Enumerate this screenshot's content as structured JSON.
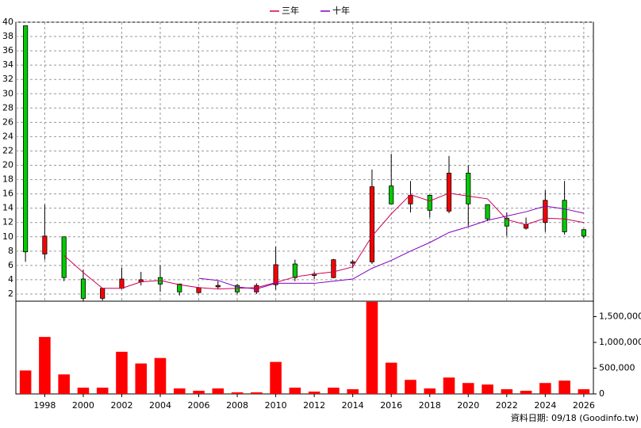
{
  "chart_data": [
    {
      "type": "candlestick",
      "x": [
        1997,
        1998,
        1999,
        2000,
        2001,
        2002,
        2003,
        2004,
        2005,
        2006,
        2007,
        2008,
        2009,
        2010,
        2011,
        2012,
        2013,
        2014,
        2015,
        2016,
        2017,
        2018,
        2019,
        2020,
        2021,
        2022,
        2023,
        2024,
        2025,
        2026
      ],
      "open": [
        39.5,
        7.6,
        10,
        4.1,
        1.4,
        2.8,
        3.7,
        4.3,
        3.4,
        2.2,
        3.0,
        3.2,
        2.3,
        3.3,
        6.2,
        4.6,
        4.3,
        6.3,
        6.5,
        17.1,
        14.6,
        15.8,
        13.6,
        18.9,
        14.5,
        12.6,
        11.2,
        12,
        15.1,
        11
      ],
      "high": [
        39.5,
        14.5,
        10,
        5.4,
        2.8,
        5.7,
        5.1,
        6.0,
        3.4,
        3.0,
        3.8,
        3.4,
        3.5,
        8.6,
        6.8,
        5.1,
        6.9,
        6.8,
        19.4,
        21.6,
        17.8,
        15.9,
        21.3,
        20,
        14.5,
        13.4,
        12.7,
        16.5,
        17.8,
        11.1
      ],
      "low": [
        6.5,
        6.8,
        3.8,
        1.0,
        1.1,
        2.7,
        3.2,
        2.3,
        1.8,
        2.1,
        2.7,
        2.0,
        2.0,
        2.6,
        3.8,
        4.1,
        4.2,
        5.6,
        6.2,
        14.6,
        13.4,
        12.7,
        13.3,
        11.5,
        12.2,
        10.1,
        11.0,
        10.7,
        10.3,
        9.8
      ],
      "close": [
        7.9,
        10.1,
        4.3,
        1.4,
        2.8,
        4.1,
        4.0,
        3.4,
        2.3,
        2.9,
        3.2,
        2.3,
        3.2,
        6.1,
        4.3,
        4.8,
        6.8,
        6.5,
        17,
        14.6,
        15.8,
        13.7,
        18.9,
        14.6,
        12.5,
        11.5,
        11.7,
        15.1,
        10.7,
        10.1
      ],
      "up_color": "#ff0000",
      "down_color": "#00cc00",
      "series": [
        {
          "name": "三年",
          "color": "#cc0055",
          "values": [
            null,
            null,
            7.4,
            5.0,
            2.8,
            2.8,
            3.7,
            3.9,
            3.3,
            2.9,
            2.7,
            2.8,
            2.9,
            3.6,
            4.4,
            4.8,
            5.1,
            5.8,
            10.1,
            13.2,
            15.9,
            15.0,
            16.1,
            15.7,
            15.3,
            12.4,
            11.7,
            12.6,
            12.5,
            12.0
          ]
        },
        {
          "name": "十年",
          "color": "#8000c0",
          "values": [
            null,
            null,
            null,
            null,
            null,
            null,
            null,
            null,
            null,
            4.2,
            3.9,
            3.0,
            2.7,
            3.5,
            3.5,
            3.5,
            3.8,
            4.1,
            5.6,
            6.7,
            8.0,
            9.2,
            10.6,
            11.4,
            12.3,
            12.9,
            13.5,
            14.3,
            13.9,
            13.3
          ]
        }
      ],
      "xlim": [
        1996.5,
        2026.5
      ],
      "xticks": [
        1998,
        2000,
        2002,
        2004,
        2006,
        2008,
        2010,
        2012,
        2014,
        2016,
        2018,
        2020,
        2022,
        2024,
        2026
      ],
      "ylim": [
        1,
        40
      ],
      "yticks": [
        2,
        4,
        6,
        8,
        10,
        12,
        14,
        16,
        18,
        20,
        22,
        24,
        26,
        28,
        30,
        32,
        34,
        36,
        38,
        40
      ],
      "grid": true,
      "legend": "top"
    },
    {
      "type": "bar",
      "x": [
        1997,
        1998,
        1999,
        2000,
        2001,
        2002,
        2003,
        2004,
        2005,
        2006,
        2007,
        2008,
        2009,
        2010,
        2011,
        2012,
        2013,
        2014,
        2015,
        2016,
        2017,
        2018,
        2019,
        2020,
        2021,
        2022,
        2023,
        2024,
        2025,
        2026
      ],
      "values": [
        455000,
        1106000,
        379000,
        121000,
        121000,
        818000,
        591000,
        697000,
        106000,
        61000,
        106000,
        30000,
        30000,
        621000,
        121000,
        45000,
        121000,
        91000,
        1788000,
        606000,
        273000,
        106000,
        318000,
        212000,
        182000,
        91000,
        61000,
        212000,
        258000,
        91000
      ],
      "color": "#ff0000",
      "xlim": [
        1996.5,
        2026.5
      ],
      "ylim": [
        0,
        1800000
      ],
      "yticks": [
        0,
        {
          "value": 500000,
          "label": "500,000"
        },
        {
          "value": 1000000,
          "label": "1,000,000"
        },
        {
          "value": 1500000,
          "label": "1,500,000"
        }
      ],
      "source": "資料日期: 09/18 (Goodinfo.tw)"
    }
  ]
}
